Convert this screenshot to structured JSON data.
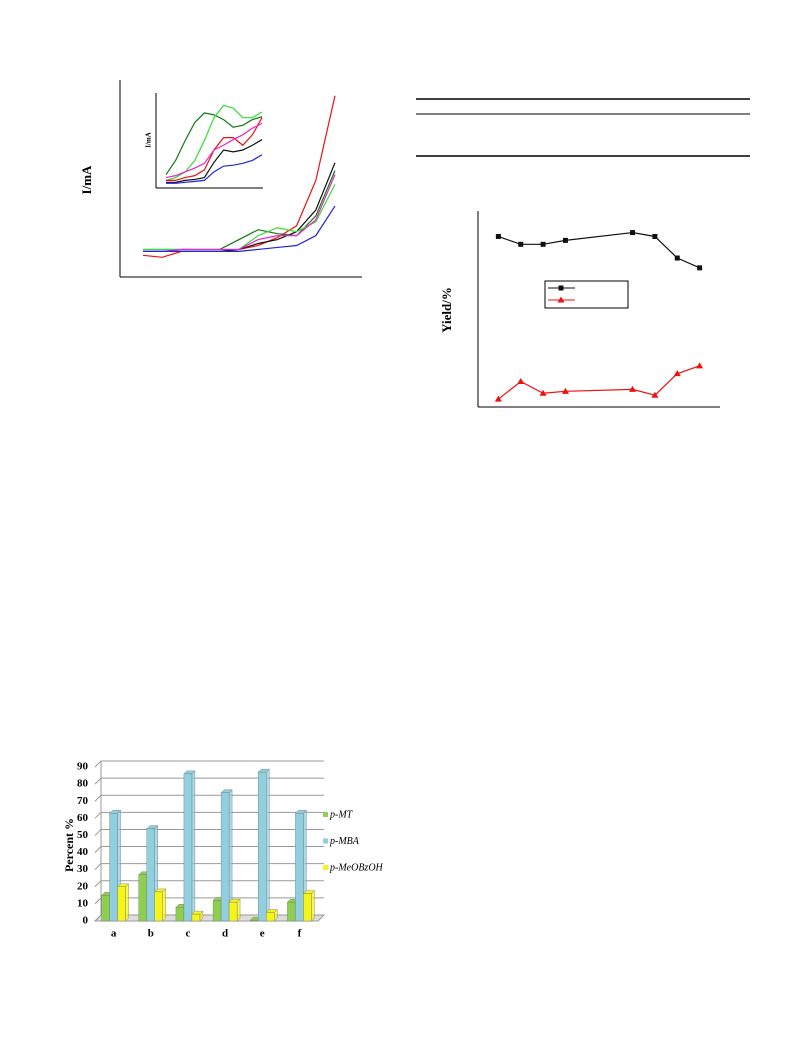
{
  "chart_data": [
    {
      "type": "line",
      "ylabel": "I/mA",
      "x": [
        0,
        1,
        2,
        3,
        4,
        5,
        6,
        7,
        8,
        9,
        10
      ],
      "xlim": [
        0,
        10
      ],
      "ylim": [
        0,
        100
      ],
      "series": [
        {
          "color": "#ee1111",
          "values": [
            11,
            10,
            13,
            13,
            13,
            14,
            16,
            20,
            26,
            49,
            92
          ]
        },
        {
          "color": "#111111",
          "values": [
            13,
            13,
            13,
            13,
            13,
            14,
            17,
            19,
            23,
            34,
            58
          ]
        },
        {
          "color": "#117711",
          "values": [
            14,
            14,
            14,
            14,
            14,
            19,
            24,
            22,
            21,
            31,
            54
          ]
        },
        {
          "color": "#33dd33",
          "values": [
            14,
            14,
            14,
            14,
            14,
            14,
            21,
            25,
            23,
            28,
            47
          ]
        },
        {
          "color": "#ee22cc",
          "values": [
            13,
            13,
            14,
            14,
            14,
            14,
            19,
            21,
            21,
            29,
            52
          ]
        },
        {
          "color": "#2222dd",
          "values": [
            13,
            13,
            13,
            13,
            13,
            13,
            14,
            15,
            16,
            21,
            36
          ]
        }
      ]
    },
    {
      "type": "line",
      "ylabel": "I/mA",
      "x": [
        0,
        1,
        2,
        3,
        4,
        5,
        6,
        7,
        8,
        9,
        10
      ],
      "xlim": [
        0,
        10
      ],
      "ylim": [
        0,
        100
      ],
      "series": [
        {
          "color": "#117711",
          "values": [
            14,
            29,
            50,
            69,
            79,
            77,
            72,
            64,
            66,
            72,
            75
          ]
        },
        {
          "color": "#33dd33",
          "values": [
            8,
            11,
            17,
            29,
            50,
            74,
            87,
            84,
            74,
            74,
            80
          ]
        },
        {
          "color": "#ee1111",
          "values": [
            8,
            8,
            11,
            13,
            19,
            40,
            53,
            53,
            45,
            56,
            74
          ]
        },
        {
          "color": "#ee22cc",
          "values": [
            11,
            13,
            17,
            21,
            26,
            40,
            45,
            51,
            56,
            63,
            68
          ]
        },
        {
          "color": "#111111",
          "values": [
            6,
            6,
            8,
            9,
            11,
            27,
            40,
            38,
            40,
            45,
            51
          ]
        },
        {
          "color": "#2222dd",
          "values": [
            5,
            5,
            6,
            7,
            8,
            17,
            23,
            24,
            26,
            29,
            35
          ]
        }
      ]
    },
    {
      "type": "line",
      "ylabel": "Yield/%",
      "x": [
        1,
        2,
        3,
        4,
        7,
        8,
        9,
        10
      ],
      "xlim": [
        0,
        11
      ],
      "ylim": [
        0,
        100
      ],
      "markers": true,
      "legend": true,
      "series": [
        {
          "color": "#111111",
          "marker": "square",
          "values": [
            87,
            83,
            83,
            85,
            89,
            87,
            76,
            71
          ]
        },
        {
          "color": "#ee1111",
          "marker": "triangle",
          "values": [
            4,
            13,
            7,
            8,
            9,
            6,
            17,
            21
          ]
        }
      ]
    },
    {
      "type": "bar",
      "ylabel": "Percent %",
      "categories": [
        "a",
        "b",
        "c",
        "d",
        "e",
        "f"
      ],
      "ylim": [
        0,
        90
      ],
      "yticks": [
        0,
        10,
        20,
        30,
        40,
        50,
        60,
        70,
        80,
        90
      ],
      "grid": true,
      "legend": "right",
      "series": [
        {
          "name": "p-MT",
          "color": "#8fcf4f",
          "values": [
            15,
            27,
            8,
            12,
            0.5,
            11
          ]
        },
        {
          "name": "p-MBA",
          "color": "#8fcfe0",
          "values": [
            63,
            54,
            86,
            75,
            87,
            63
          ]
        },
        {
          "name": "p-MeOBzOH",
          "color": "#f5f51a",
          "values": [
            20,
            17,
            4,
            11,
            5,
            16
          ]
        }
      ]
    }
  ]
}
